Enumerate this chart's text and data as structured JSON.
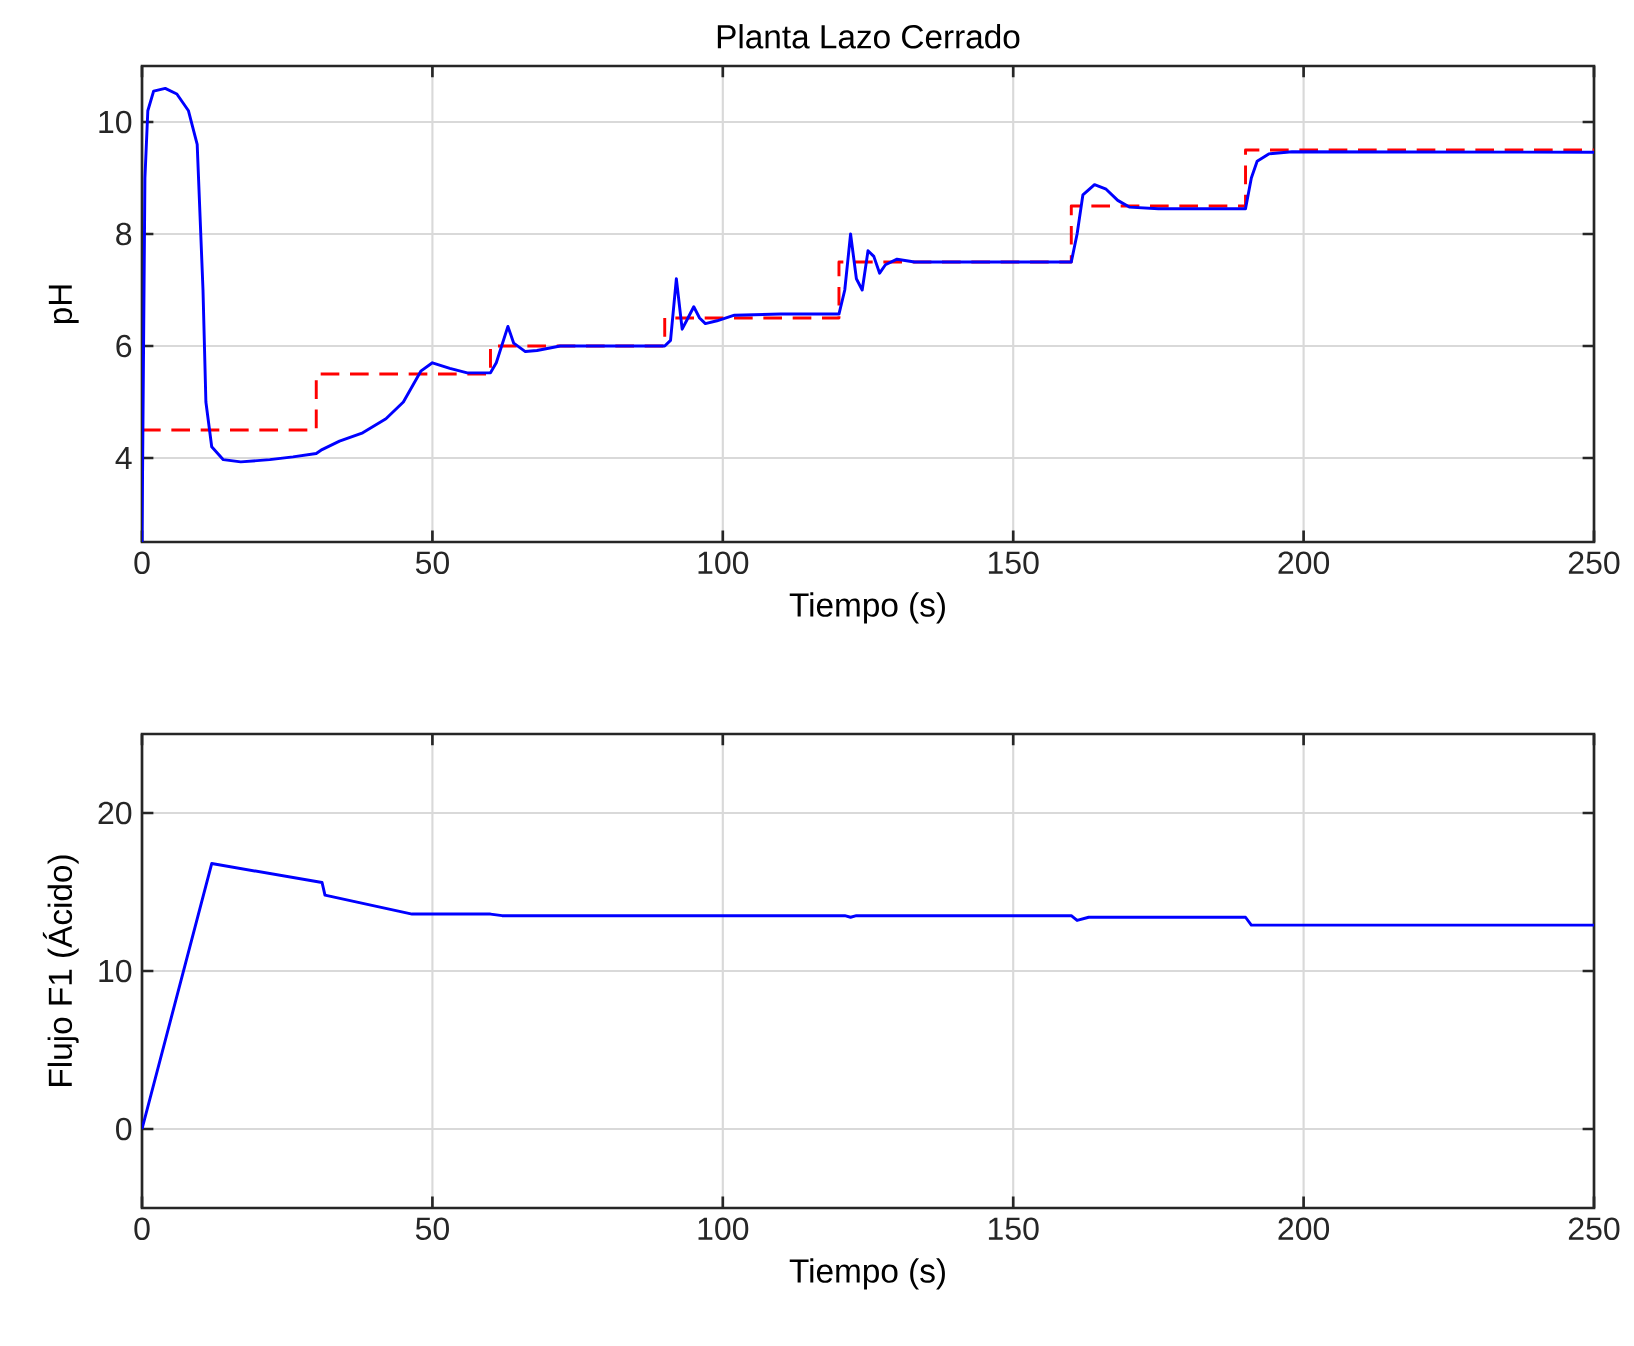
{
  "chart_data": [
    {
      "type": "line",
      "title": "Planta Lazo Cerrado",
      "xlabel": "Tiempo (s)",
      "ylabel": "pH",
      "xlim": [
        0,
        250
      ],
      "ylim": [
        2.5,
        11
      ],
      "xticks": [
        0,
        50,
        100,
        150,
        200,
        250
      ],
      "yticks": [
        4,
        6,
        8,
        10
      ],
      "grid": true,
      "series": [
        {
          "color": "#ff0000",
          "line_style": "dashed",
          "x": [
            0,
            30,
            30,
            60,
            60,
            90,
            90,
            120,
            120,
            160,
            160,
            190,
            190,
            250
          ],
          "values": [
            4.5,
            4.5,
            5.5,
            5.5,
            6,
            6,
            6.5,
            6.5,
            7.5,
            7.5,
            8.5,
            8.5,
            9.5,
            9.5
          ]
        },
        {
          "color": "#0000ff",
          "line_style": "solid",
          "x": [
            0,
            0.5,
            1,
            2,
            4,
            6,
            8,
            9.5,
            10.5,
            11,
            12,
            14,
            17,
            22,
            26,
            30,
            31,
            34,
            38,
            42,
            45,
            48,
            50,
            53,
            56,
            60,
            61,
            63,
            64,
            66,
            68,
            72,
            90,
            91,
            92,
            93,
            94,
            95,
            96,
            97,
            99,
            102,
            110,
            120,
            121,
            122,
            123,
            124,
            125,
            126,
            127,
            128,
            130,
            133,
            160,
            161,
            162,
            164,
            166,
            168,
            170,
            175,
            190,
            191,
            192,
            194,
            198,
            250
          ],
          "values": [
            2.5,
            9,
            10.2,
            10.55,
            10.6,
            10.5,
            10.2,
            9.6,
            7,
            5,
            4.2,
            3.97,
            3.93,
            3.97,
            4.02,
            4.08,
            4.15,
            4.3,
            4.45,
            4.7,
            5.0,
            5.55,
            5.7,
            5.6,
            5.52,
            5.52,
            5.7,
            6.35,
            6.05,
            5.9,
            5.92,
            6.0,
            6.0,
            6.1,
            7.2,
            6.3,
            6.5,
            6.7,
            6.5,
            6.4,
            6.45,
            6.55,
            6.57,
            6.57,
            7.0,
            8.0,
            7.2,
            7.0,
            7.7,
            7.6,
            7.3,
            7.45,
            7.55,
            7.5,
            7.5,
            8.0,
            8.7,
            8.88,
            8.8,
            8.6,
            8.48,
            8.45,
            8.45,
            9.0,
            9.3,
            9.43,
            9.47,
            9.46
          ]
        }
      ]
    },
    {
      "type": "line",
      "xlabel": "Tiempo (s)",
      "ylabel": "Flujo F1 (Ácido)",
      "xlim": [
        0,
        250
      ],
      "ylim": [
        -5,
        25
      ],
      "xticks": [
        0,
        50,
        100,
        150,
        200,
        250
      ],
      "yticks": [
        0,
        10,
        20
      ],
      "grid": true,
      "series": [
        {
          "color": "#0000ff",
          "line_style": "solid",
          "x": [
            0,
            12,
            31,
            31.5,
            46.5,
            60,
            62,
            121,
            122,
            123,
            160,
            161,
            163,
            190,
            191,
            250
          ],
          "values": [
            0,
            16.8,
            15.6,
            14.8,
            13.6,
            13.6,
            13.5,
            13.5,
            13.4,
            13.5,
            13.5,
            13.2,
            13.4,
            13.4,
            12.9,
            12.9
          ]
        }
      ]
    }
  ]
}
